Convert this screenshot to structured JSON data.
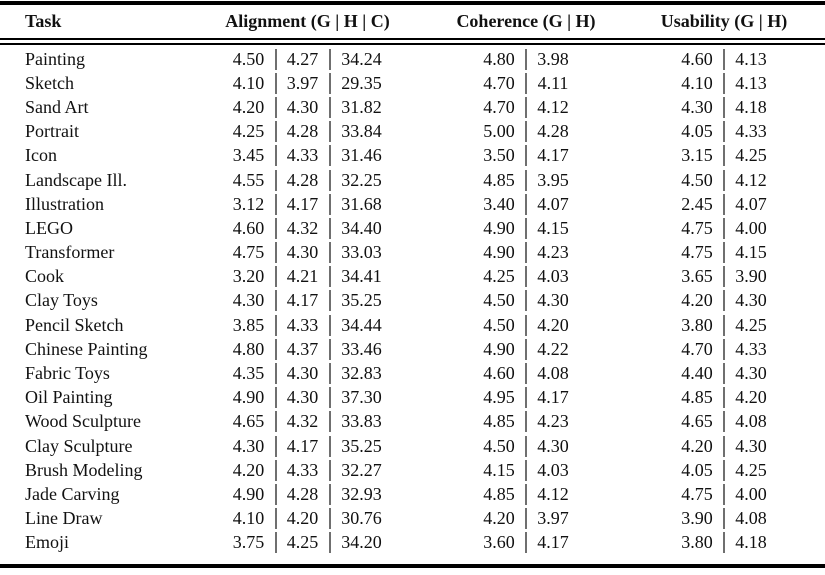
{
  "table": {
    "columns": [
      {
        "label": "Task"
      },
      {
        "label": "Alignment (G | H | C)"
      },
      {
        "label": "Coherence (G | H)"
      },
      {
        "label": "Usability (G | H)"
      }
    ],
    "rows": [
      {
        "task": "Painting",
        "alignment": [
          "4.50",
          "4.27",
          "34.24"
        ],
        "coherence": [
          "4.80",
          "3.98"
        ],
        "usability": [
          "4.60",
          "4.13"
        ]
      },
      {
        "task": "Sketch",
        "alignment": [
          "4.10",
          "3.97",
          "29.35"
        ],
        "coherence": [
          "4.70",
          "4.11"
        ],
        "usability": [
          "4.10",
          "4.13"
        ]
      },
      {
        "task": "Sand Art",
        "alignment": [
          "4.20",
          "4.30",
          "31.82"
        ],
        "coherence": [
          "4.70",
          "4.12"
        ],
        "usability": [
          "4.30",
          "4.18"
        ]
      },
      {
        "task": "Portrait",
        "alignment": [
          "4.25",
          "4.28",
          "33.84"
        ],
        "coherence": [
          "5.00",
          "4.28"
        ],
        "usability": [
          "4.05",
          "4.33"
        ]
      },
      {
        "task": "Icon",
        "alignment": [
          "3.45",
          "4.33",
          "31.46"
        ],
        "coherence": [
          "3.50",
          "4.17"
        ],
        "usability": [
          "3.15",
          "4.25"
        ]
      },
      {
        "task": "Landscape Ill.",
        "alignment": [
          "4.55",
          "4.28",
          "32.25"
        ],
        "coherence": [
          "4.85",
          "3.95"
        ],
        "usability": [
          "4.50",
          "4.12"
        ]
      },
      {
        "task": "Illustration",
        "alignment": [
          "3.12",
          "4.17",
          "31.68"
        ],
        "coherence": [
          "3.40",
          "4.07"
        ],
        "usability": [
          "2.45",
          "4.07"
        ]
      },
      {
        "task": "LEGO",
        "alignment": [
          "4.60",
          "4.32",
          "34.40"
        ],
        "coherence": [
          "4.90",
          "4.15"
        ],
        "usability": [
          "4.75",
          "4.00"
        ]
      },
      {
        "task": "Transformer",
        "alignment": [
          "4.75",
          "4.30",
          "33.03"
        ],
        "coherence": [
          "4.90",
          "4.23"
        ],
        "usability": [
          "4.75",
          "4.15"
        ]
      },
      {
        "task": "Cook",
        "alignment": [
          "3.20",
          "4.21",
          "34.41"
        ],
        "coherence": [
          "4.25",
          "4.03"
        ],
        "usability": [
          "3.65",
          "3.90"
        ]
      },
      {
        "task": "Clay Toys",
        "alignment": [
          "4.30",
          "4.17",
          "35.25"
        ],
        "coherence": [
          "4.50",
          "4.30"
        ],
        "usability": [
          "4.20",
          "4.30"
        ]
      },
      {
        "task": "Pencil Sketch",
        "alignment": [
          "3.85",
          "4.33",
          "34.44"
        ],
        "coherence": [
          "4.50",
          "4.20"
        ],
        "usability": [
          "3.80",
          "4.25"
        ]
      },
      {
        "task": "Chinese Painting",
        "alignment": [
          "4.80",
          "4.37",
          "33.46"
        ],
        "coherence": [
          "4.90",
          "4.22"
        ],
        "usability": [
          "4.70",
          "4.33"
        ]
      },
      {
        "task": "Fabric Toys",
        "alignment": [
          "4.35",
          "4.30",
          "32.83"
        ],
        "coherence": [
          "4.60",
          "4.08"
        ],
        "usability": [
          "4.40",
          "4.30"
        ]
      },
      {
        "task": "Oil Painting",
        "alignment": [
          "4.90",
          "4.30",
          "37.30"
        ],
        "coherence": [
          "4.95",
          "4.17"
        ],
        "usability": [
          "4.85",
          "4.20"
        ]
      },
      {
        "task": "Wood Sculpture",
        "alignment": [
          "4.65",
          "4.32",
          "33.83"
        ],
        "coherence": [
          "4.85",
          "4.23"
        ],
        "usability": [
          "4.65",
          "4.08"
        ]
      },
      {
        "task": "Clay Sculpture",
        "alignment": [
          "4.30",
          "4.17",
          "35.25"
        ],
        "coherence": [
          "4.50",
          "4.30"
        ],
        "usability": [
          "4.20",
          "4.30"
        ]
      },
      {
        "task": "Brush Modeling",
        "alignment": [
          "4.20",
          "4.33",
          "32.27"
        ],
        "coherence": [
          "4.15",
          "4.03"
        ],
        "usability": [
          "4.05",
          "4.25"
        ]
      },
      {
        "task": "Jade Carving",
        "alignment": [
          "4.90",
          "4.28",
          "32.93"
        ],
        "coherence": [
          "4.85",
          "4.12"
        ],
        "usability": [
          "4.75",
          "4.00"
        ]
      },
      {
        "task": "Line Draw",
        "alignment": [
          "4.10",
          "4.20",
          "30.76"
        ],
        "coherence": [
          "4.20",
          "3.97"
        ],
        "usability": [
          "3.90",
          "4.08"
        ]
      },
      {
        "task": "Emoji",
        "alignment": [
          "3.75",
          "4.25",
          "34.20"
        ],
        "coherence": [
          "3.60",
          "4.17"
        ],
        "usability": [
          "3.80",
          "4.18"
        ]
      }
    ]
  },
  "colors": {
    "rule": "#000000",
    "separator_bar": "#6f6f6f",
    "text": "#111111",
    "background": "#ffffff"
  }
}
